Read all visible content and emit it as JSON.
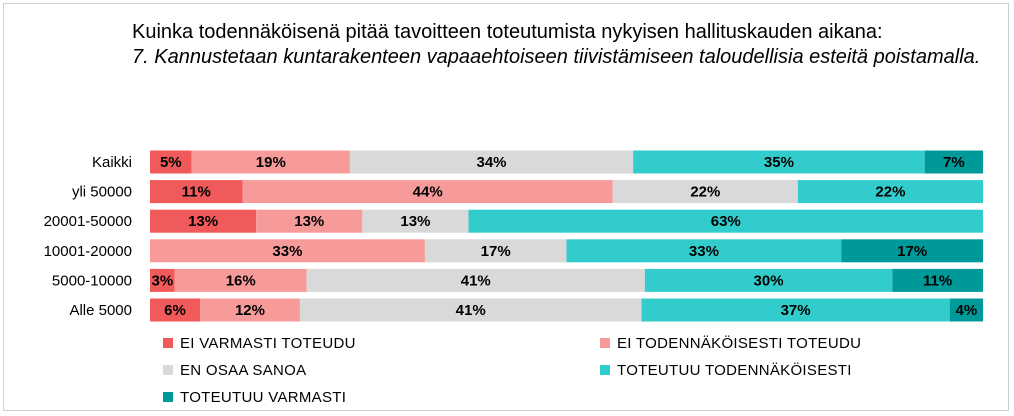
{
  "chart_data": {
    "type": "bar",
    "orientation": "horizontal",
    "stacked": "percent",
    "title": "Kuinka todennäköisenä pitää tavoitteen toteutumista nykyisen hallituskauden aikana:",
    "subtitle": "7. Kannustetaan kuntarakenteen vapaaehtoiseen tiivistämiseen taloudellisia esteitä poistamalla.",
    "categories": [
      "Kaikki",
      "yli 50000",
      "20001-50000",
      "10001-20000",
      "5000-10000",
      "Alle 5000"
    ],
    "series": [
      {
        "name": "EI VARMASTI TOTEUDU",
        "color": "#f05a5a",
        "values": [
          5,
          11,
          13,
          0,
          3,
          6
        ],
        "labels": [
          "5%",
          "11%",
          "13%",
          "",
          "3%",
          "6%"
        ]
      },
      {
        "name": "EI TODENNÄKÖISESTI TOTEUDU",
        "color": "#f79a9a",
        "values": [
          19,
          44,
          13,
          33,
          16,
          12
        ],
        "labels": [
          "19%",
          "44%",
          "13%",
          "33%",
          "16%",
          "12%"
        ]
      },
      {
        "name": "EN OSAA SANOA",
        "color": "#d9d9d9",
        "values": [
          34,
          22,
          13,
          17,
          41,
          41
        ],
        "labels": [
          "34%",
          "22%",
          "13%",
          "17%",
          "41%",
          "41%"
        ]
      },
      {
        "name": "TOTEUTUU TODENNÄKÖISESTI",
        "color": "#33cccc",
        "values": [
          35,
          22,
          63,
          33,
          30,
          37
        ],
        "labels": [
          "35%",
          "22%",
          "63%",
          "33%",
          "30%",
          "37%"
        ]
      },
      {
        "name": "TOTEUTUU VARMASTI",
        "color": "#009999",
        "values": [
          7,
          0,
          0,
          17,
          11,
          4
        ],
        "labels": [
          "7%",
          "",
          "",
          "17%",
          "11%",
          "4%"
        ]
      }
    ],
    "legend": "bottom"
  }
}
